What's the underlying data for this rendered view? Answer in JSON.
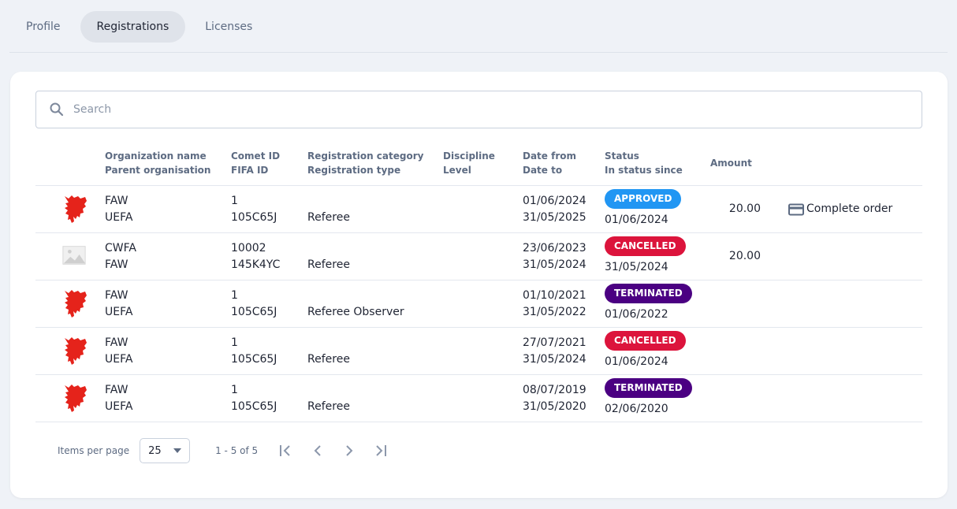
{
  "tabs": [
    {
      "label": "Profile"
    },
    {
      "label": "Registrations",
      "active": true
    },
    {
      "label": "Licenses"
    }
  ],
  "search": {
    "placeholder": "Search",
    "value": ""
  },
  "columns": {
    "org": "Organization name",
    "parent": "Parent organisation",
    "comet": "Comet ID",
    "fifa": "FIFA ID",
    "category": "Registration category",
    "type": "Registration type",
    "discipline": "Discipline",
    "level": "Level",
    "date_from": "Date from",
    "date_to": "Date to",
    "status": "Status",
    "status_since": "In status since",
    "amount": "Amount"
  },
  "status_colors": {
    "APPROVED": "#2196f3",
    "CANCELLED": "#dc143c",
    "TERMINATED": "#4b0082"
  },
  "rows": [
    {
      "logo": "faw-dragon",
      "org": "FAW",
      "parent": "UEFA",
      "comet": "1",
      "fifa": "105C65J",
      "category": "",
      "type": "Referee",
      "discipline": "",
      "level": "",
      "date_from": "01/06/2024",
      "date_to": "31/05/2025",
      "status": "APPROVED",
      "status_since": "01/06/2024",
      "amount": "20.00",
      "action": "Complete order"
    },
    {
      "logo": "image-placeholder",
      "org": "CWFA",
      "parent": "FAW",
      "comet": "10002",
      "fifa": "145K4YC",
      "category": "",
      "type": "Referee",
      "discipline": "",
      "level": "",
      "date_from": "23/06/2023",
      "date_to": "31/05/2024",
      "status": "CANCELLED",
      "status_since": "31/05/2024",
      "amount": "20.00",
      "action": ""
    },
    {
      "logo": "faw-dragon",
      "org": "FAW",
      "parent": "UEFA",
      "comet": "1",
      "fifa": "105C65J",
      "category": "",
      "type": "Referee Observer",
      "discipline": "",
      "level": "",
      "date_from": "01/10/2021",
      "date_to": "31/05/2022",
      "status": "TERMINATED",
      "status_since": "01/06/2022",
      "amount": "",
      "action": ""
    },
    {
      "logo": "faw-dragon",
      "org": "FAW",
      "parent": "UEFA",
      "comet": "1",
      "fifa": "105C65J",
      "category": "",
      "type": "Referee",
      "discipline": "",
      "level": "",
      "date_from": "27/07/2021",
      "date_to": "31/05/2024",
      "status": "CANCELLED",
      "status_since": "01/06/2024",
      "amount": "",
      "action": ""
    },
    {
      "logo": "faw-dragon",
      "org": "FAW",
      "parent": "UEFA",
      "comet": "1",
      "fifa": "105C65J",
      "category": "",
      "type": "Referee",
      "discipline": "",
      "level": "",
      "date_from": "08/07/2019",
      "date_to": "31/05/2020",
      "status": "TERMINATED",
      "status_since": "02/06/2020",
      "amount": "",
      "action": ""
    }
  ],
  "pager": {
    "items_per_page_label": "Items per page",
    "items_per_page": "25",
    "range": "1 - 5 of 5"
  }
}
